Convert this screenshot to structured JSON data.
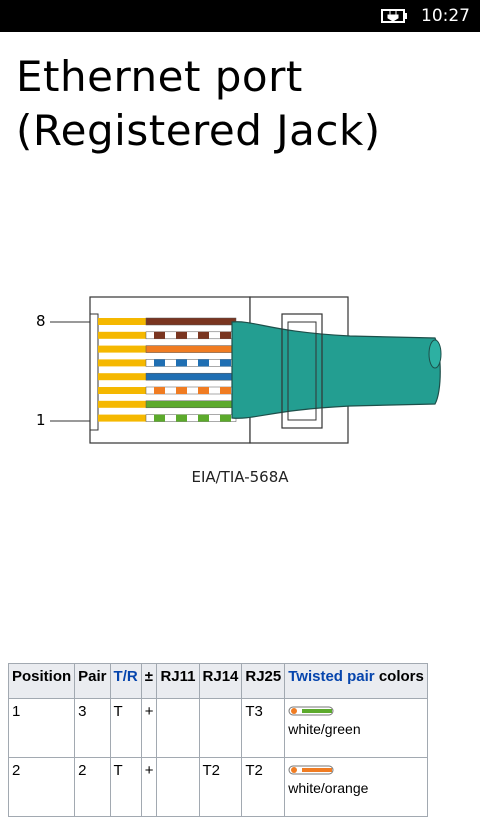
{
  "status_bar": {
    "time": "10:27",
    "battery_icon": "battery-charging-icon"
  },
  "page": {
    "title_line1": "Ethernet port",
    "title_line2": "(Registered Jack)"
  },
  "diagram": {
    "caption": "EIA/TIA-568A",
    "pin_label_top": "8",
    "pin_label_bottom": "1",
    "colors": {
      "jacket": "#239e91",
      "orange": "#f07c22",
      "green": "#5caa2c",
      "blue": "#1f6fb3",
      "brown": "#7a3520",
      "pin_gold": "#f5b800"
    }
  },
  "table": {
    "headers": [
      "Position",
      "Pair",
      "T/R",
      "±",
      "RJ11",
      "RJ14",
      "RJ25",
      "Twisted pair",
      "colors"
    ],
    "rows": [
      {
        "position": "1",
        "pair": "3",
        "tr": "T",
        "pm": "+",
        "rj11": "",
        "rj14": "",
        "rj25": "T3",
        "color": "white/green",
        "swatch": "green"
      },
      {
        "position": "2",
        "pair": "2",
        "tr": "T",
        "pm": "+",
        "rj11": "",
        "rj14": "T2",
        "rj25": "T2",
        "color": "white/orange",
        "swatch": "orange"
      }
    ]
  }
}
